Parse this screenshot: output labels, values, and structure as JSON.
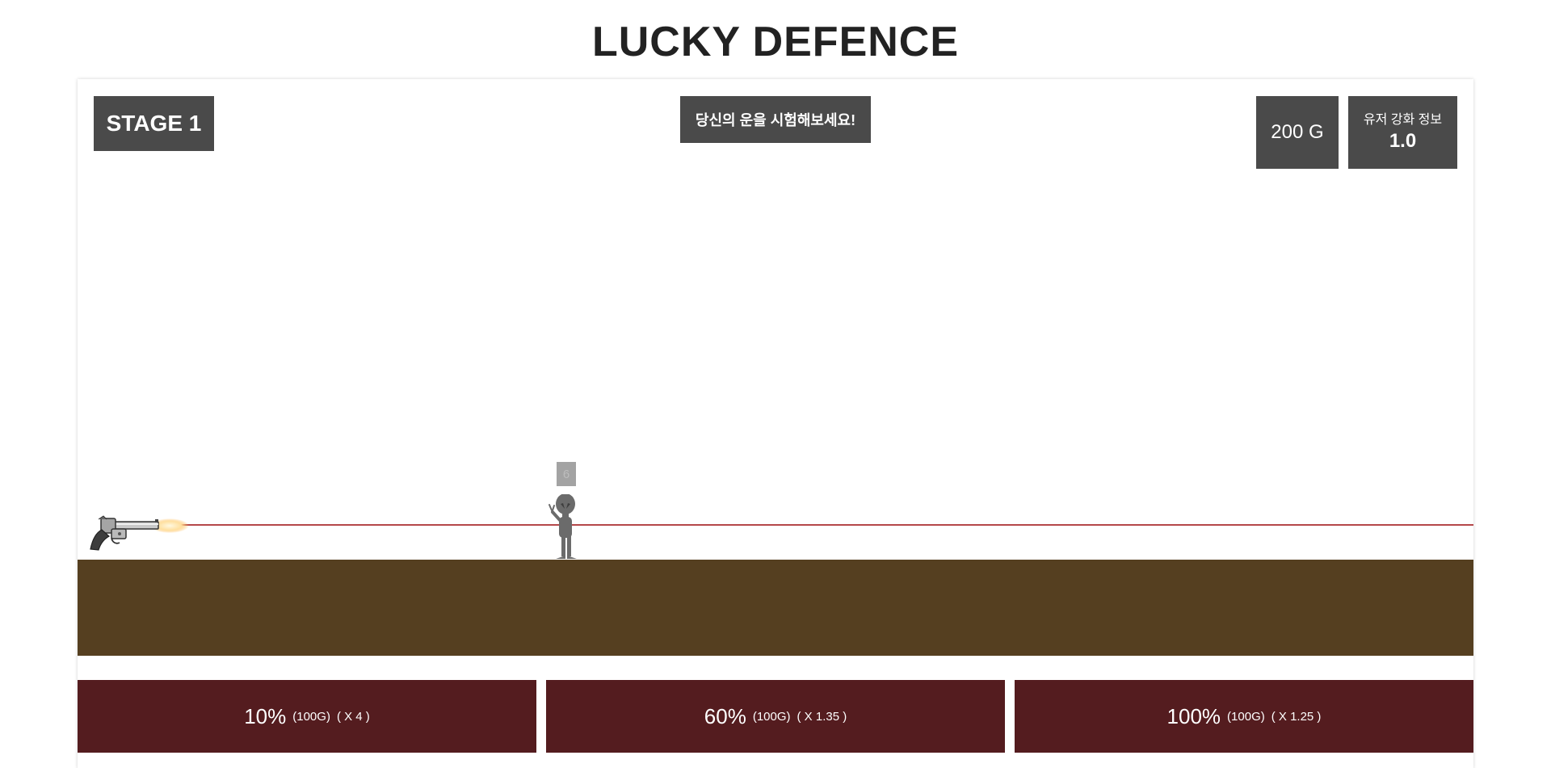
{
  "title": "LUCKY DEFENCE",
  "hud": {
    "stage": "STAGE 1",
    "message": "당신의 운을 시험해보세요!",
    "gold": "200 G",
    "upgrade_label": "유저 강화 정보",
    "upgrade_value": "1.0"
  },
  "enemy": {
    "hp": "6"
  },
  "bets": [
    {
      "chance": "10%",
      "cost": "(100G)",
      "multiplier": "( X 4 )"
    },
    {
      "chance": "60%",
      "cost": "(100G)",
      "multiplier": "( X 1.35 )"
    },
    {
      "chance": "100%",
      "cost": "(100G)",
      "multiplier": "( X 1.25 )"
    }
  ],
  "colors": {
    "panel": "#4a4a4a",
    "ground": "#553f20",
    "bet_button": "#541c1f",
    "laser": "#b5484a",
    "enemy": "#6b6b6b"
  },
  "icons": {
    "weapon": "revolver-icon",
    "enemy": "alien-enemy-icon"
  }
}
